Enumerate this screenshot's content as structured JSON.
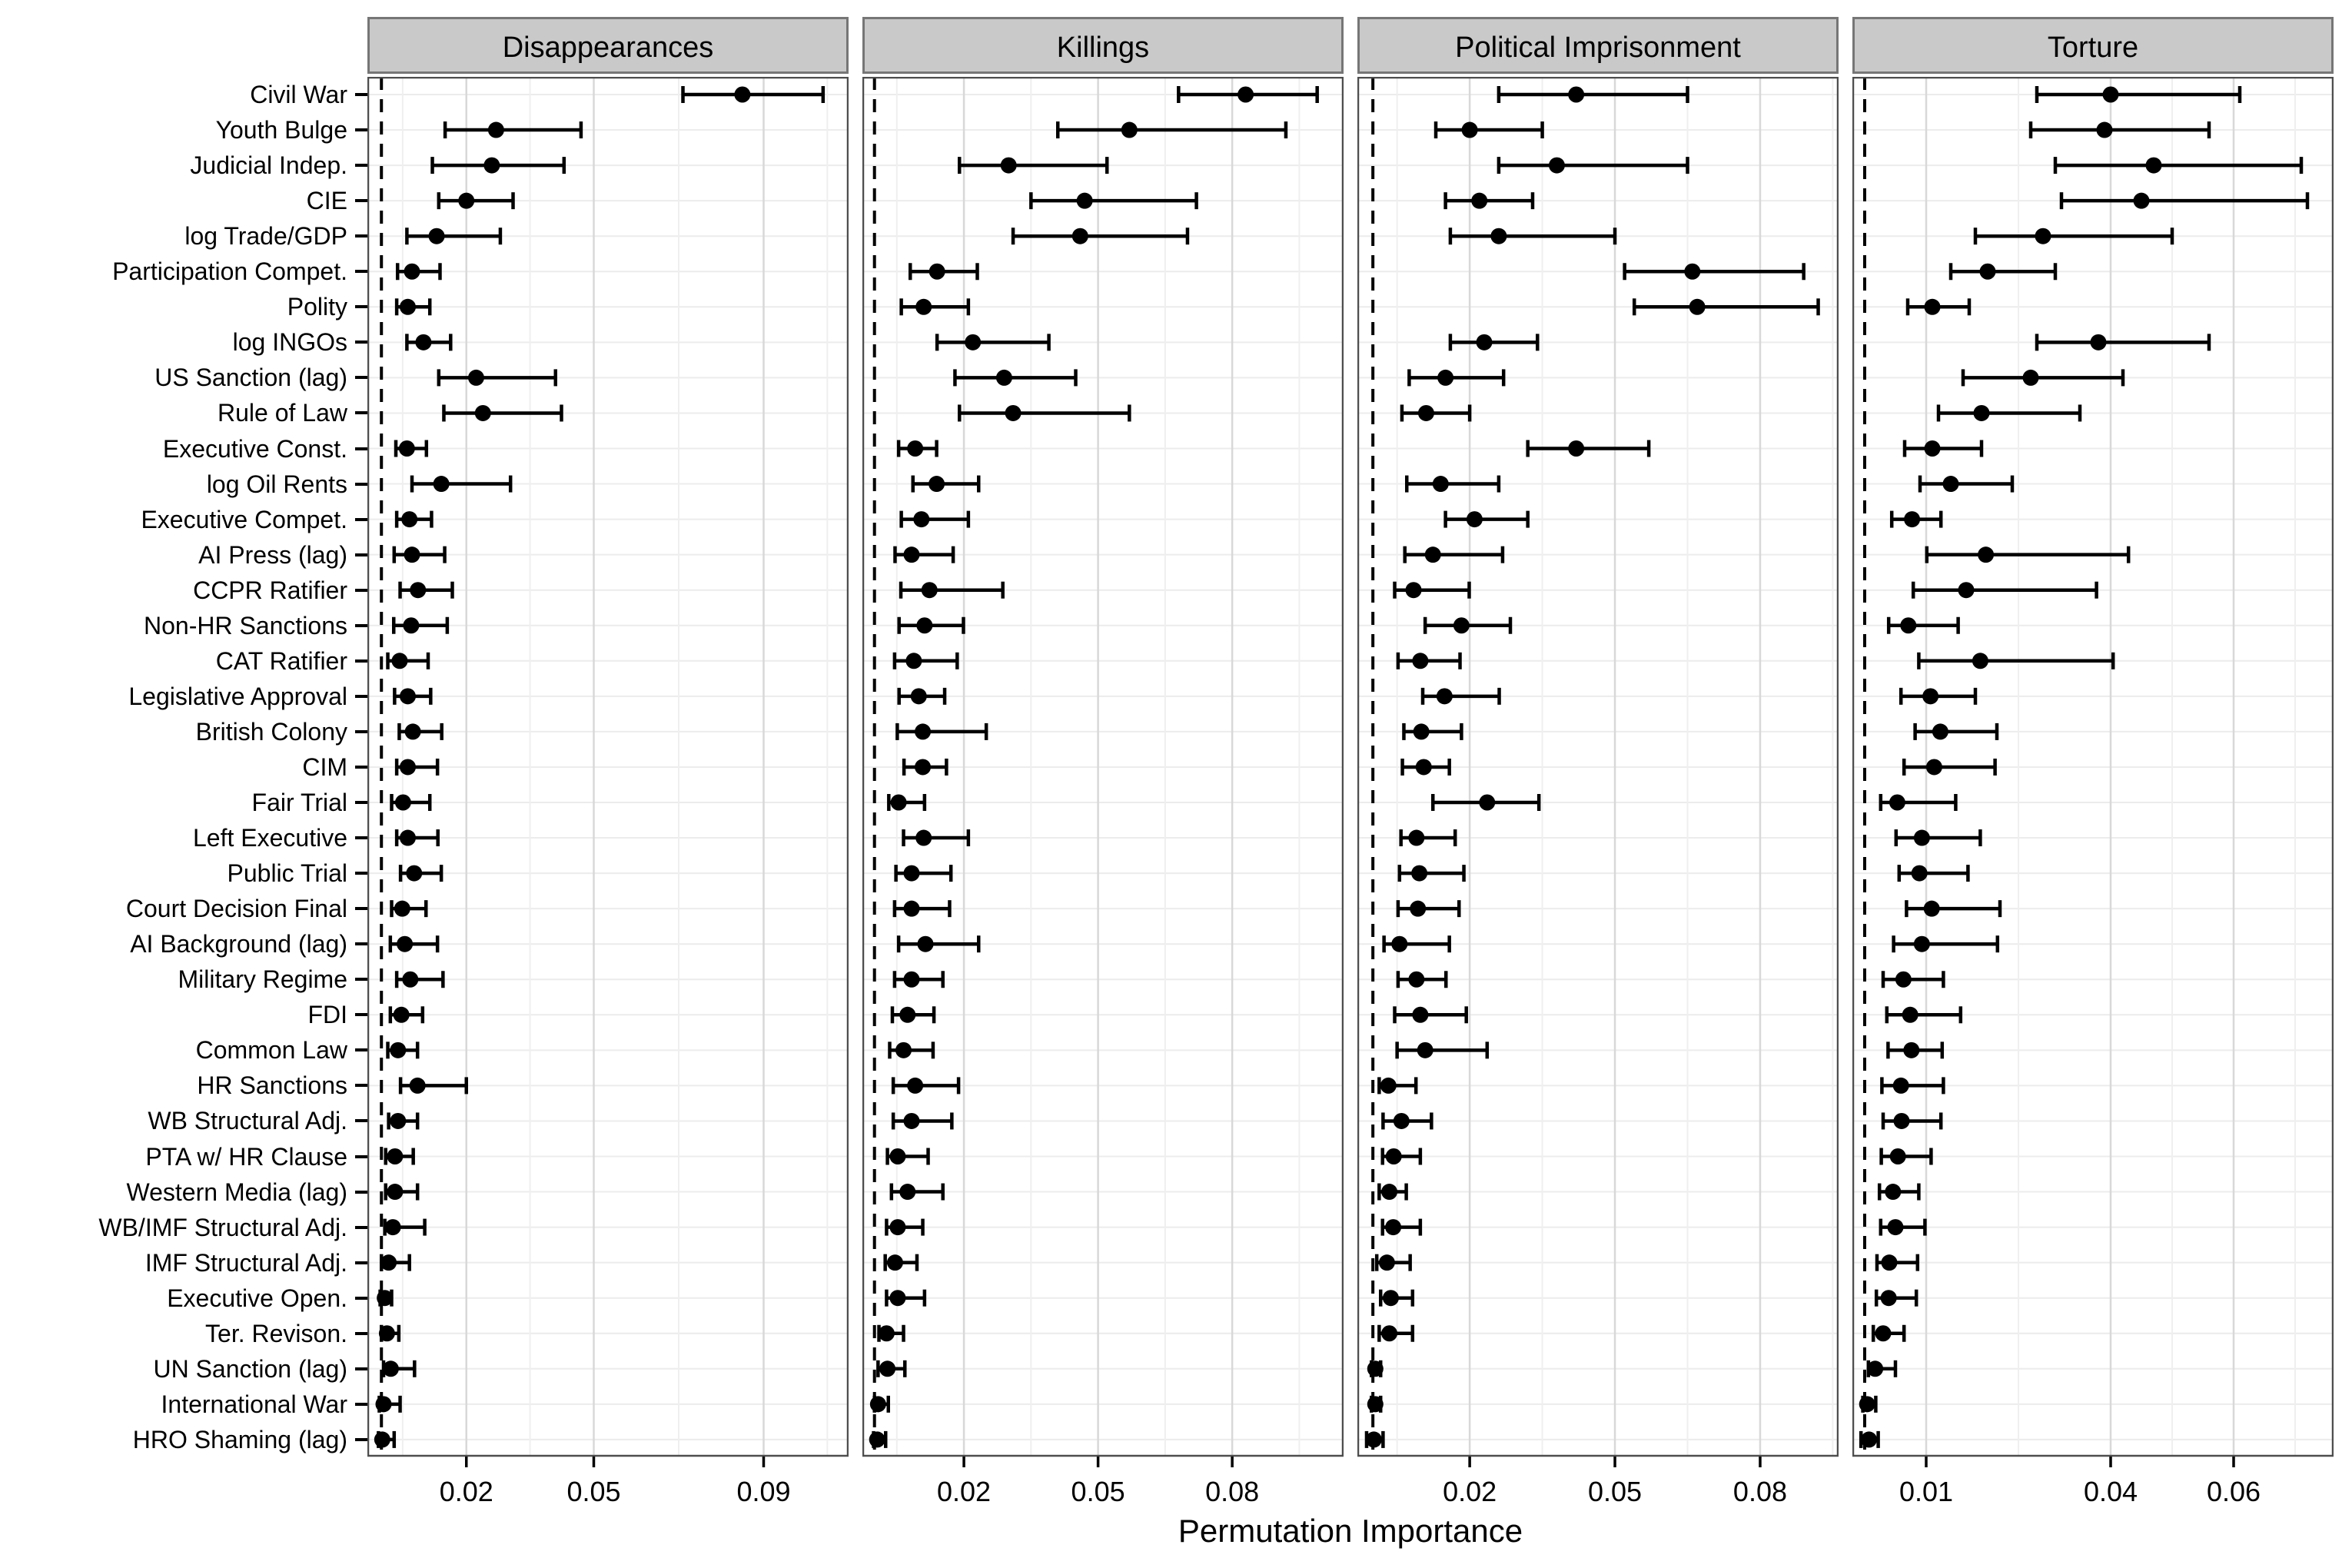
{
  "figure": {
    "x_axis_title": "Permutation Importance"
  },
  "chart_data": {
    "type": "scatter",
    "subtype": "dot-and-whisker / faceted errorbar plot",
    "title": "",
    "xlabel": "Permutation Importance",
    "ylabel": "",
    "legend": "none",
    "grid": "on",
    "reference_line_x": 0,
    "reference_line_style": "black dashed vertical",
    "rows": [
      "Civil War",
      "Youth Bulge",
      "Judicial Indep.",
      "CIE",
      "log Trade/GDP",
      "Participation Compet.",
      "Polity",
      "log INGOs",
      "US Sanction (lag)",
      "Rule of Law",
      "Executive Const.",
      "log Oil Rents",
      "Executive Compet.",
      "AI Press (lag)",
      "CCPR Ratifier",
      "Non-HR Sanctions",
      "CAT Ratifier",
      "Legislative Approval",
      "British Colony",
      "CIM",
      "Fair Trial",
      "Left Executive",
      "Public Trial",
      "Court Decision Final",
      "AI Background (lag)",
      "Military Regime",
      "FDI",
      "Common Law",
      "HR Sanctions",
      "WB Structural Adj.",
      "PTA w/ HR Clause",
      "Western Media (lag)",
      "WB/IMF Structural Adj.",
      "IMF Structural Adj.",
      "Executive Open.",
      "Ter. Revison.",
      "UN Sanction (lag)",
      "International War",
      "HRO Shaming (lag)"
    ],
    "panels": [
      {
        "title": "Disappearances",
        "xlim": [
          -0.0033,
          0.11
        ],
        "ticks": [
          0.02,
          0.05,
          0.09
        ],
        "tick_labels": [
          "0.02",
          "0.05",
          "0.09"
        ],
        "minor_ticks": [
          0.005,
          0.035,
          0.07,
          0.105
        ],
        "estimates": [
          [
            0.085,
            0.071,
            0.104
          ],
          [
            0.027,
            0.015,
            0.047
          ],
          [
            0.026,
            0.012,
            0.043
          ],
          [
            0.02,
            0.0135,
            0.031
          ],
          [
            0.013,
            0.006,
            0.028
          ],
          [
            0.0072,
            0.0038,
            0.0138
          ],
          [
            0.0062,
            0.0036,
            0.0114
          ],
          [
            0.0099,
            0.006,
            0.0163
          ],
          [
            0.0223,
            0.0135,
            0.041
          ],
          [
            0.0239,
            0.0147,
            0.0424
          ],
          [
            0.006,
            0.0034,
            0.0106
          ],
          [
            0.0141,
            0.0072,
            0.0304
          ],
          [
            0.0066,
            0.0036,
            0.0118
          ],
          [
            0.0072,
            0.003,
            0.0149
          ],
          [
            0.0086,
            0.0044,
            0.0167
          ],
          [
            0.007,
            0.0029,
            0.0155
          ],
          [
            0.0043,
            0.0015,
            0.011
          ],
          [
            0.0062,
            0.0031,
            0.0116
          ],
          [
            0.0074,
            0.0042,
            0.0142
          ],
          [
            0.0062,
            0.0036,
            0.0132
          ],
          [
            0.0051,
            0.0024,
            0.0114
          ],
          [
            0.0062,
            0.0036,
            0.0133
          ],
          [
            0.0077,
            0.0045,
            0.0141
          ],
          [
            0.0049,
            0.0024,
            0.0105
          ],
          [
            0.0055,
            0.0021,
            0.0132
          ],
          [
            0.0068,
            0.0036,
            0.0145
          ],
          [
            0.0047,
            0.0021,
            0.0097
          ],
          [
            0.0039,
            0.0015,
            0.0085
          ],
          [
            0.0085,
            0.0045,
            0.02
          ],
          [
            0.0039,
            0.0017,
            0.0085
          ],
          [
            0.0032,
            0.001,
            0.0075
          ],
          [
            0.0032,
            0.001,
            0.0085
          ],
          [
            0.0027,
            0.0008,
            0.0102
          ],
          [
            0.0017,
            0.0,
            0.0066
          ],
          [
            0.0008,
            -0.0003,
            0.0024
          ],
          [
            0.0013,
            0.0,
            0.0041
          ],
          [
            0.0022,
            0.0005,
            0.0078
          ],
          [
            0.0005,
            -0.0005,
            0.0044
          ],
          [
            0.0002,
            -0.0007,
            0.003
          ]
        ]
      },
      {
        "title": "Killings",
        "xlim": [
          -0.0027,
          0.1049
        ],
        "ticks": [
          0.02,
          0.05,
          0.08
        ],
        "tick_labels": [
          "0.02",
          "0.05",
          "0.08"
        ],
        "minor_ticks": [
          0.005,
          0.035,
          0.065,
          0.095
        ],
        "estimates": [
          [
            0.083,
            0.068,
            0.099
          ],
          [
            0.057,
            0.041,
            0.092
          ],
          [
            0.03,
            0.019,
            0.052
          ],
          [
            0.047,
            0.035,
            0.072
          ],
          [
            0.046,
            0.031,
            0.07
          ],
          [
            0.014,
            0.008,
            0.023
          ],
          [
            0.011,
            0.006,
            0.021
          ],
          [
            0.022,
            0.014,
            0.039
          ],
          [
            0.029,
            0.018,
            0.045
          ],
          [
            0.031,
            0.019,
            0.057
          ],
          [
            0.0091,
            0.0054,
            0.0139
          ],
          [
            0.0139,
            0.0086,
            0.0233
          ],
          [
            0.0105,
            0.006,
            0.021
          ],
          [
            0.0083,
            0.0046,
            0.0176
          ],
          [
            0.0123,
            0.0059,
            0.0287
          ],
          [
            0.0112,
            0.0055,
            0.0199
          ],
          [
            0.0088,
            0.0045,
            0.0185
          ],
          [
            0.0099,
            0.0055,
            0.0157
          ],
          [
            0.0108,
            0.0051,
            0.025
          ],
          [
            0.0108,
            0.0066,
            0.0161
          ],
          [
            0.0054,
            0.0032,
            0.0112
          ],
          [
            0.011,
            0.0065,
            0.021
          ],
          [
            0.0083,
            0.0048,
            0.0171
          ],
          [
            0.0083,
            0.0045,
            0.0168
          ],
          [
            0.0114,
            0.0054,
            0.0233
          ],
          [
            0.0083,
            0.0045,
            0.0153
          ],
          [
            0.0074,
            0.004,
            0.0133
          ],
          [
            0.0065,
            0.0034,
            0.0131
          ],
          [
            0.0091,
            0.0042,
            0.0188
          ],
          [
            0.0083,
            0.0042,
            0.0173
          ],
          [
            0.0052,
            0.0029,
            0.012
          ],
          [
            0.0074,
            0.0038,
            0.0153
          ],
          [
            0.0052,
            0.0027,
            0.0108
          ],
          [
            0.0046,
            0.0024,
            0.0095
          ],
          [
            0.0052,
            0.0027,
            0.0112
          ],
          [
            0.0027,
            0.001,
            0.0065
          ],
          [
            0.0029,
            0.0008,
            0.0068
          ],
          [
            0.0008,
            0.0,
            0.0031
          ],
          [
            0.0006,
            -0.0002,
            0.0025
          ]
        ]
      },
      {
        "title": "Political Imprisonment",
        "xlim": [
          -0.0032,
          0.0962
        ],
        "ticks": [
          0.02,
          0.05,
          0.08
        ],
        "tick_labels": [
          "0.02",
          "0.05",
          "0.08"
        ],
        "minor_ticks": [
          0.005,
          0.035,
          0.065,
          0.095
        ],
        "estimates": [
          [
            0.042,
            0.026,
            0.065
          ],
          [
            0.02,
            0.013,
            0.035
          ],
          [
            0.038,
            0.026,
            0.065
          ],
          [
            0.022,
            0.015,
            0.033
          ],
          [
            0.026,
            0.016,
            0.05
          ],
          [
            0.066,
            0.052,
            0.089
          ],
          [
            0.067,
            0.054,
            0.092
          ],
          [
            0.023,
            0.016,
            0.034
          ],
          [
            0.015,
            0.0075,
            0.027
          ],
          [
            0.011,
            0.006,
            0.02
          ],
          [
            0.042,
            0.032,
            0.057
          ],
          [
            0.014,
            0.007,
            0.026
          ],
          [
            0.021,
            0.015,
            0.032
          ],
          [
            0.0124,
            0.0066,
            0.0268
          ],
          [
            0.0084,
            0.0045,
            0.0199
          ],
          [
            0.0183,
            0.0108,
            0.0284
          ],
          [
            0.0098,
            0.0052,
            0.018
          ],
          [
            0.0148,
            0.0103,
            0.0261
          ],
          [
            0.01,
            0.0064,
            0.0183
          ],
          [
            0.0105,
            0.0061,
            0.0158
          ],
          [
            0.0236,
            0.0124,
            0.0343
          ],
          [
            0.009,
            0.0058,
            0.017
          ],
          [
            0.0096,
            0.0055,
            0.0188
          ],
          [
            0.0093,
            0.0052,
            0.0178
          ],
          [
            0.0055,
            0.0023,
            0.0158
          ],
          [
            0.009,
            0.0052,
            0.0151
          ],
          [
            0.0098,
            0.0045,
            0.0193
          ],
          [
            0.0108,
            0.005,
            0.0236
          ],
          [
            0.0032,
            0.0013,
            0.0089
          ],
          [
            0.0059,
            0.0021,
            0.0121
          ],
          [
            0.0043,
            0.002,
            0.0098
          ],
          [
            0.0034,
            0.0013,
            0.0069
          ],
          [
            0.0042,
            0.002,
            0.0098
          ],
          [
            0.0029,
            0.0008,
            0.0077
          ],
          [
            0.0037,
            0.0016,
            0.0082
          ],
          [
            0.0034,
            0.0013,
            0.0082
          ],
          [
            0.0005,
            -0.0003,
            0.0016
          ],
          [
            0.0005,
            -0.0003,
            0.0016
          ],
          [
            0.0002,
            -0.0013,
            0.0021
          ]
        ]
      },
      {
        "title": "Torture",
        "xlim": [
          -0.002,
          0.07625
        ],
        "ticks": [
          0.01,
          0.04,
          0.06
        ],
        "tick_labels": [
          "0.01",
          "0.04",
          "0.06"
        ],
        "minor_ticks": [
          0.025,
          0.05,
          0.07
        ],
        "estimates": [
          [
            0.04,
            0.028,
            0.061
          ],
          [
            0.039,
            0.027,
            0.056
          ],
          [
            0.047,
            0.031,
            0.071
          ],
          [
            0.045,
            0.032,
            0.072
          ],
          [
            0.029,
            0.018,
            0.05
          ],
          [
            0.02,
            0.014,
            0.031
          ],
          [
            0.011,
            0.007,
            0.017
          ],
          [
            0.038,
            0.028,
            0.056
          ],
          [
            0.027,
            0.016,
            0.042
          ],
          [
            0.019,
            0.012,
            0.035
          ],
          [
            0.011,
            0.0065,
            0.019
          ],
          [
            0.014,
            0.009,
            0.024
          ],
          [
            0.0077,
            0.0044,
            0.0124
          ],
          [
            0.0197,
            0.0101,
            0.0429
          ],
          [
            0.0165,
            0.0079,
            0.0377
          ],
          [
            0.0071,
            0.0039,
            0.0152
          ],
          [
            0.0188,
            0.0088,
            0.0404
          ],
          [
            0.0107,
            0.0059,
            0.018
          ],
          [
            0.0123,
            0.0082,
            0.0215
          ],
          [
            0.0113,
            0.0064,
            0.0212
          ],
          [
            0.0053,
            0.0026,
            0.0148
          ],
          [
            0.0093,
            0.0051,
            0.0188
          ],
          [
            0.0089,
            0.0056,
            0.0168
          ],
          [
            0.0109,
            0.0068,
            0.022
          ],
          [
            0.0093,
            0.0047,
            0.0216
          ],
          [
            0.0063,
            0.003,
            0.0128
          ],
          [
            0.0074,
            0.0036,
            0.0156
          ],
          [
            0.0076,
            0.0038,
            0.0126
          ],
          [
            0.0059,
            0.0028,
            0.0128
          ],
          [
            0.006,
            0.003,
            0.0124
          ],
          [
            0.0054,
            0.0027,
            0.0108
          ],
          [
            0.0046,
            0.0024,
            0.0088
          ],
          [
            0.005,
            0.0026,
            0.0098
          ],
          [
            0.004,
            0.002,
            0.0086
          ],
          [
            0.0039,
            0.0019,
            0.0084
          ],
          [
            0.003,
            0.0014,
            0.0064
          ],
          [
            0.0017,
            0.0006,
            0.005
          ],
          [
            0.0004,
            -0.0003,
            0.0018
          ],
          [
            0.0007,
            -0.0006,
            0.0022
          ]
        ]
      }
    ],
    "style": {
      "point_color": "#000000",
      "errorbar_color": "#000000",
      "strip_fill": "#c9c9c9",
      "strip_border": "#767676",
      "panel_border": "#4d4d4d",
      "major_grid": "#d8d8d8",
      "minor_grid": "#efefef",
      "row_grid": "#ececec",
      "background": "#ffffff"
    }
  }
}
